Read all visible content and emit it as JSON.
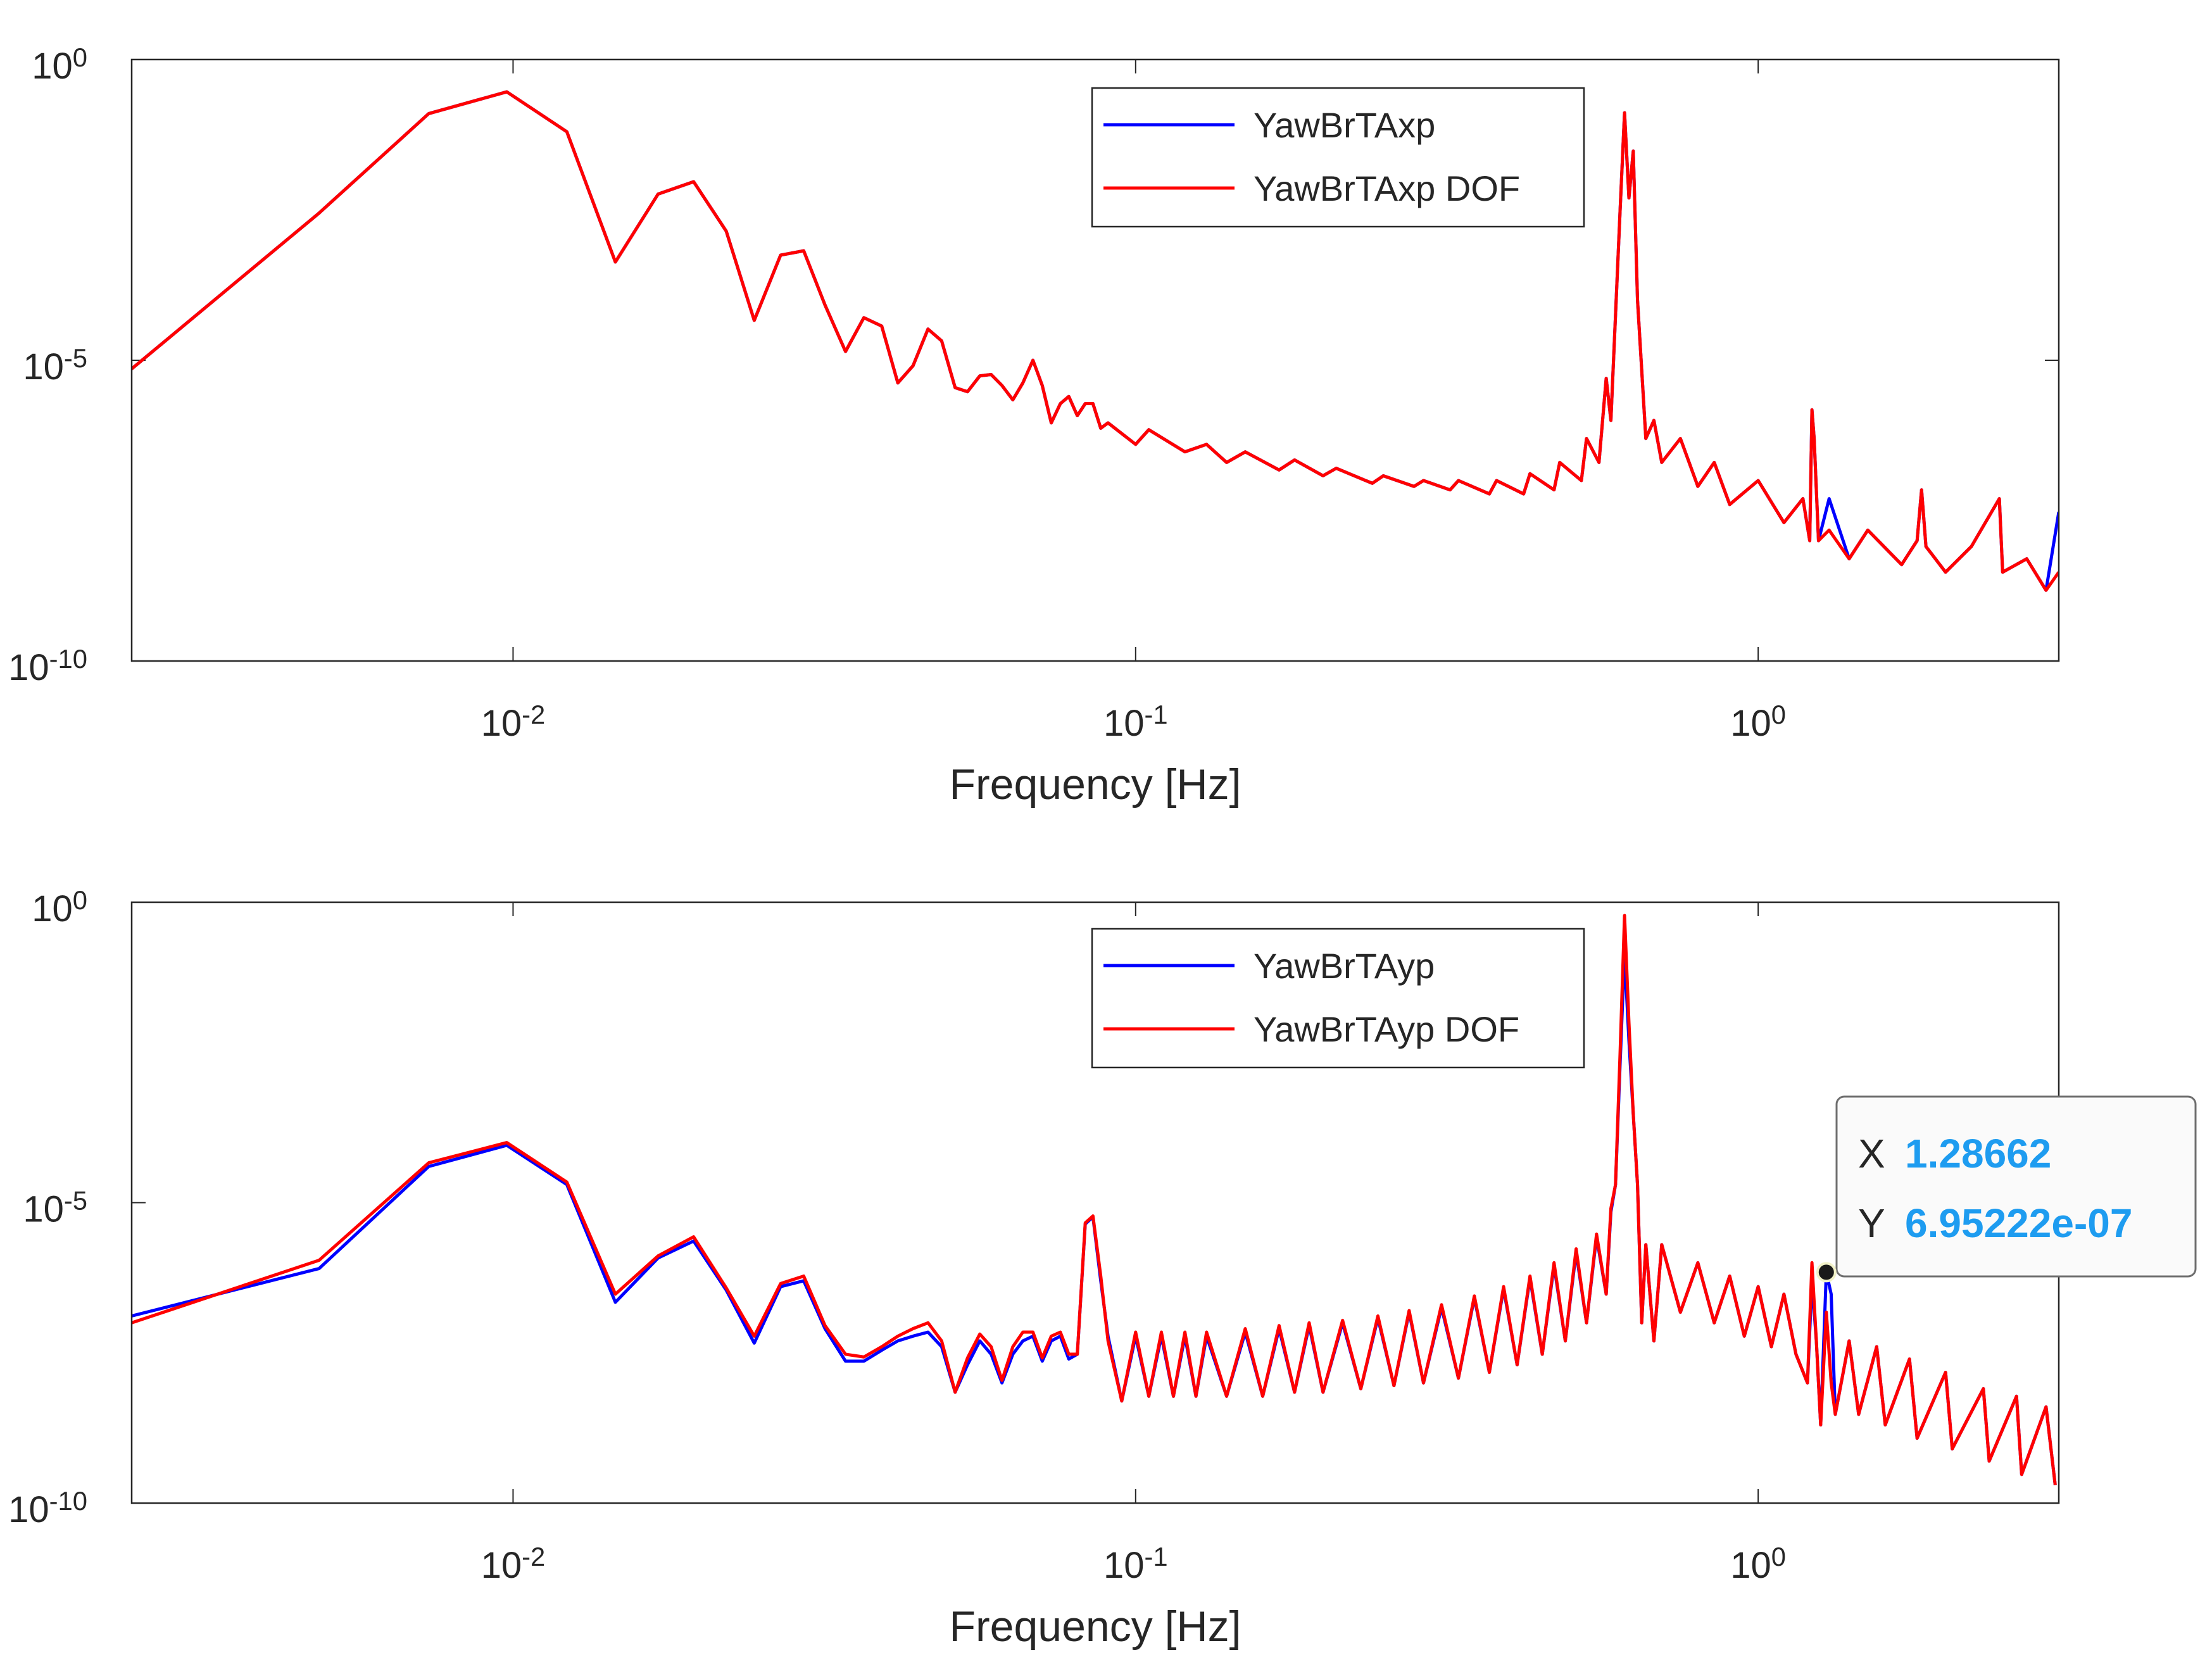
{
  "chart_data": [
    {
      "type": "line",
      "xlabel": "Frequency [Hz]",
      "xscale": "log",
      "yscale": "log",
      "legend": "north",
      "xlim": [
        0.00244,
        3.04
      ],
      "ylim": [
        1e-10,
        1
      ],
      "xticks": [
        {
          "value": 0.01,
          "label": "10^-2"
        },
        {
          "value": 0.1,
          "label": "10^-1"
        },
        {
          "value": 1,
          "label": "10^0"
        }
      ],
      "yticks": [
        {
          "value": 1e-10,
          "label": "10^-10"
        },
        {
          "value": 1e-05,
          "label": "10^-5"
        },
        {
          "value": 1,
          "label": "10^0"
        }
      ],
      "x": [
        0.00244,
        0.00488,
        0.00732,
        0.00977,
        0.0122,
        0.0146,
        0.0171,
        0.0195,
        0.022,
        0.0244,
        0.0269,
        0.0293,
        0.0317,
        0.0342,
        0.0366,
        0.0391,
        0.0415,
        0.0439,
        0.0464,
        0.0488,
        0.0513,
        0.0537,
        0.0562,
        0.0586,
        0.061,
        0.0635,
        0.0659,
        0.0684,
        0.0708,
        0.0732,
        0.0757,
        0.0781,
        0.0806,
        0.083,
        0.0854,
        0.0879,
        0.0903,
        0.1,
        0.105,
        0.12,
        0.13,
        0.14,
        0.15,
        0.17,
        0.18,
        0.2,
        0.21,
        0.24,
        0.25,
        0.28,
        0.29,
        0.32,
        0.33,
        0.37,
        0.38,
        0.42,
        0.43,
        0.47,
        0.48,
        0.52,
        0.53,
        0.555,
        0.57,
        0.58,
        0.6,
        0.61,
        0.62,
        0.63,
        0.64,
        0.66,
        0.68,
        0.7,
        0.75,
        0.8,
        0.85,
        0.9,
        1.0,
        1.1,
        1.18,
        1.21,
        1.22,
        1.23,
        1.25,
        1.3,
        1.4,
        1.5,
        1.7,
        1.8,
        1.83,
        1.86,
        2.0,
        2.2,
        2.44,
        2.47,
        2.7,
        2.9,
        3.04
      ],
      "series": [
        {
          "name": "YawBrTAxp",
          "color": "#0000ff",
          "values": [
            7.2e-06,
            0.0028,
            0.126,
            0.29,
            0.063,
            0.00043,
            0.0058,
            0.0093,
            0.0014,
            4.6e-05,
            0.00056,
            0.00066,
            8.3e-05,
            1.4e-05,
            5.1e-05,
            3.7e-05,
            4.2e-06,
            8.1e-06,
            3.3e-05,
            2.1e-05,
            3.5e-06,
            3e-06,
            5.5e-06,
            5.8e-06,
            3.8e-06,
            2.2e-06,
            4.2e-06,
            1e-05,
            3.8e-06,
            9.1e-07,
            1.9e-06,
            2.5e-06,
            1.2e-06,
            1.9e-06,
            1.9e-06,
            7.4e-07,
            9.1e-07,
            4e-07,
            7e-07,
            3e-07,
            4e-07,
            2e-07,
            3e-07,
            1.5e-07,
            2.2e-07,
            1.2e-07,
            1.6e-07,
            9e-08,
            1.2e-07,
            8e-08,
            1e-07,
            7e-08,
            1e-07,
            6e-08,
            1e-07,
            6e-08,
            1.3e-07,
            7e-08,
            2e-07,
            1e-07,
            5e-07,
            2e-07,
            5e-06,
            1e-06,
            0.003,
            0.13,
            0.005,
            0.03,
            0.0001,
            5e-07,
            1e-06,
            2e-07,
            5e-07,
            8e-08,
            2e-07,
            4e-08,
            1e-07,
            2e-08,
            5e-08,
            1e-08,
            1.5e-06,
            5e-07,
            1e-08,
            5e-08,
            5e-09,
            1.5e-08,
            4e-09,
            1e-08,
            7e-08,
            8e-09,
            3e-09,
            8e-09,
            5e-08,
            3e-09,
            5e-09,
            1.5e-09,
            3e-08
          ]
        },
        {
          "name": "YawBrTAxp DOF",
          "color": "#ff0000",
          "values": [
            7.2e-06,
            0.0028,
            0.126,
            0.29,
            0.063,
            0.00043,
            0.0058,
            0.0093,
            0.0014,
            4.6e-05,
            0.00056,
            0.00066,
            8.3e-05,
            1.4e-05,
            5.1e-05,
            3.7e-05,
            4.2e-06,
            8.1e-06,
            3.3e-05,
            2.1e-05,
            3.5e-06,
            3e-06,
            5.5e-06,
            5.8e-06,
            3.8e-06,
            2.2e-06,
            4.2e-06,
            1e-05,
            3.8e-06,
            9.1e-07,
            1.9e-06,
            2.5e-06,
            1.2e-06,
            1.9e-06,
            1.9e-06,
            7.4e-07,
            9.1e-07,
            4e-07,
            7e-07,
            3e-07,
            4e-07,
            2e-07,
            3e-07,
            1.5e-07,
            2.2e-07,
            1.2e-07,
            1.6e-07,
            9e-08,
            1.2e-07,
            8e-08,
            1e-07,
            7e-08,
            1e-07,
            6e-08,
            1e-07,
            6e-08,
            1.3e-07,
            7e-08,
            2e-07,
            1e-07,
            5e-07,
            2e-07,
            5e-06,
            1e-06,
            0.003,
            0.13,
            0.005,
            0.03,
            0.0001,
            5e-07,
            1e-06,
            2e-07,
            5e-07,
            8e-08,
            2e-07,
            4e-08,
            1e-07,
            2e-08,
            5e-08,
            1e-08,
            1.5e-06,
            5e-07,
            1e-08,
            1.5e-08,
            5e-09,
            1.5e-08,
            4e-09,
            1e-08,
            7e-08,
            8e-09,
            3e-09,
            8e-09,
            5e-08,
            3e-09,
            5e-09,
            1.5e-09,
            3e-09
          ]
        }
      ]
    },
    {
      "type": "line",
      "xlabel": "Frequency [Hz]",
      "xscale": "log",
      "yscale": "log",
      "legend": "north",
      "xlim": [
        0.00244,
        3.04
      ],
      "ylim": [
        1e-10,
        1
      ],
      "xticks": [
        {
          "value": 0.01,
          "label": "10^-2"
        },
        {
          "value": 0.1,
          "label": "10^-1"
        },
        {
          "value": 1,
          "label": "10^0"
        }
      ],
      "yticks": [
        {
          "value": 1e-10,
          "label": "10^-10"
        },
        {
          "value": 1e-05,
          "label": "10^-5"
        },
        {
          "value": 1,
          "label": "10^0"
        }
      ],
      "x": [
        0.00244,
        0.00488,
        0.00732,
        0.00977,
        0.0122,
        0.0146,
        0.0171,
        0.0195,
        0.022,
        0.0244,
        0.0269,
        0.0293,
        0.0317,
        0.0342,
        0.0366,
        0.0391,
        0.0415,
        0.0439,
        0.0464,
        0.0488,
        0.0513,
        0.0537,
        0.0562,
        0.0586,
        0.061,
        0.0635,
        0.0659,
        0.0684,
        0.0708,
        0.0732,
        0.0757,
        0.0781,
        0.0806,
        0.083,
        0.0854,
        0.0879,
        0.0903,
        0.095,
        0.1,
        0.105,
        0.11,
        0.115,
        0.12,
        0.125,
        0.13,
        0.14,
        0.15,
        0.16,
        0.17,
        0.18,
        0.19,
        0.2,
        0.215,
        0.23,
        0.245,
        0.26,
        0.275,
        0.29,
        0.31,
        0.33,
        0.35,
        0.37,
        0.39,
        0.41,
        0.43,
        0.45,
        0.47,
        0.49,
        0.51,
        0.53,
        0.55,
        0.57,
        0.58,
        0.59,
        0.6,
        0.61,
        0.62,
        0.63,
        0.64,
        0.65,
        0.66,
        0.68,
        0.7,
        0.75,
        0.8,
        0.85,
        0.9,
        0.95,
        1.0,
        1.05,
        1.1,
        1.15,
        1.2,
        1.22,
        1.24,
        1.26,
        1.28662,
        1.31,
        1.33,
        1.4,
        1.45,
        1.55,
        1.6,
        1.75,
        1.8,
        2.0,
        2.05,
        2.3,
        2.35,
        2.6,
        2.65,
        2.9,
        3.0
      ],
      "series": [
        {
          "name": "YawBrTAyp",
          "color": "#0000ff",
          "values": [
            1.3e-07,
            8e-07,
            4e-05,
            9e-05,
            2e-05,
            2.2e-07,
            1.2e-06,
            2.3e-06,
            3.5e-07,
            4.6e-08,
            4e-07,
            5e-07,
            8e-08,
            2.3e-08,
            2.3e-08,
            3.5e-08,
            5e-08,
            6e-08,
            7e-08,
            4e-08,
            7e-09,
            2e-08,
            5e-08,
            3e-08,
            1e-08,
            3e-08,
            5e-08,
            6e-08,
            2.3e-08,
            5e-08,
            6e-08,
            2.5e-08,
            3e-08,
            4.4e-06,
            5.8e-06,
            5e-07,
            6e-08,
            5e-09,
            6e-08,
            6e-09,
            6e-08,
            6e-09,
            6e-08,
            6e-09,
            6e-08,
            6e-09,
            7e-08,
            6e-09,
            8e-08,
            7e-09,
            9e-08,
            7e-09,
            1e-07,
            8e-09,
            1.2e-07,
            9e-09,
            1.5e-07,
            1e-08,
            1.8e-07,
            1.2e-08,
            2.6e-07,
            1.5e-08,
            3.7e-07,
            2e-08,
            5.5e-07,
            3e-08,
            9e-07,
            5e-08,
            1.5e-06,
            1e-07,
            2.7e-06,
            3e-07,
            7e-06,
            2e-05,
            0.002,
            0.14,
            0.005,
            0.0003,
            2e-05,
            1e-07,
            2e-06,
            5e-08,
            2e-06,
            1.5e-07,
            1e-06,
            1e-07,
            6e-07,
            6e-08,
            4e-07,
            4e-08,
            3e-07,
            3e-08,
            1e-08,
            5e-07,
            5e-08,
            2e-09,
            6.95222e-07,
            3e-07,
            3e-09,
            5e-08,
            3e-09,
            4e-08,
            2e-09,
            2.5e-08,
            1.2e-09,
            1.5e-08,
            8e-10,
            8e-09,
            5e-10,
            6e-09,
            3e-10,
            4e-09,
            2e-10
          ]
        },
        {
          "name": "YawBrTAyp DOF",
          "color": "#ff0000",
          "values": [
            1e-07,
            1.1e-06,
            4.6e-05,
            0.0001,
            2.2e-05,
            3e-07,
            1.3e-06,
            2.7e-06,
            3.8e-07,
            6e-08,
            4.5e-07,
            6e-07,
            9e-08,
            3e-08,
            2.7e-08,
            4e-08,
            6e-08,
            8e-08,
            1e-07,
            5e-08,
            7e-09,
            2.6e-08,
            6.5e-08,
            4e-08,
            1.1e-08,
            4e-08,
            7e-08,
            7e-08,
            2.6e-08,
            6e-08,
            7e-08,
            3e-08,
            3e-08,
            4.6e-06,
            6e-06,
            6e-07,
            5e-08,
            5e-09,
            7e-08,
            6e-09,
            7e-08,
            6e-09,
            7e-08,
            6e-09,
            7e-08,
            6e-09,
            8e-08,
            6e-09,
            9e-08,
            7e-09,
            1e-07,
            7e-09,
            1.1e-07,
            8e-09,
            1.3e-07,
            9e-09,
            1.6e-07,
            1e-08,
            2e-07,
            1.2e-08,
            2.8e-07,
            1.5e-08,
            4e-07,
            2e-08,
            6e-07,
            3e-08,
            1e-06,
            5e-08,
            1.7e-06,
            1e-07,
            3e-06,
            3e-07,
            8e-06,
            2e-05,
            0.003,
            0.6,
            0.01,
            0.0003,
            2e-05,
            1e-07,
            2e-06,
            5e-08,
            2e-06,
            1.5e-07,
            1e-06,
            1e-07,
            6e-07,
            6e-08,
            4e-07,
            4e-08,
            3e-07,
            3e-08,
            1e-08,
            1e-06,
            5e-08,
            2e-09,
            1.5e-07,
            1e-08,
            3e-09,
            5e-08,
            3e-09,
            4e-08,
            2e-09,
            2.5e-08,
            1.2e-09,
            1.5e-08,
            8e-10,
            8e-09,
            5e-10,
            6e-09,
            3e-10,
            4e-09,
            2e-10
          ]
        }
      ],
      "datatip": {
        "x_prefix": "X",
        "x": 1.28662,
        "y_prefix": "Y",
        "y": {
          "value": 6.95222e-07,
          "label": "6.95222e-07"
        }
      }
    }
  ]
}
